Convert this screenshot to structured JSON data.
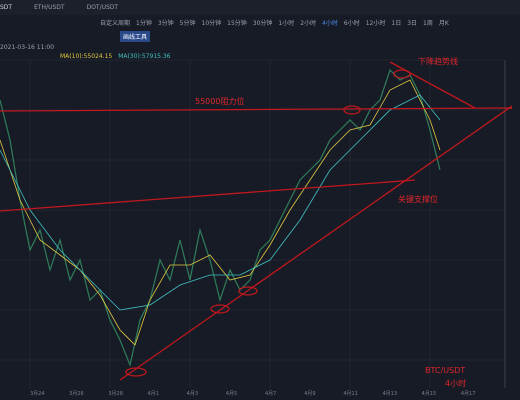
{
  "tabs": [
    "SDT",
    "ETH/USDT",
    "DOT/USDT"
  ],
  "periods": [
    "自定义周期",
    "1分钟",
    "3分钟",
    "5分钟",
    "10分钟",
    "15分钟",
    "30分钟",
    "1小时",
    "2小时",
    "4小时",
    "6小时",
    "12小时",
    "1日",
    "3日",
    "1周",
    "月K"
  ],
  "tools": {
    "draw": "画线工具"
  },
  "info": {
    "time": "2021-03-16 11:00",
    "ma10": "MA(10):55024.15",
    "ma30": "MA(30):57915.36"
  },
  "annotations": {
    "resistance": "55000阻力位",
    "downtrend": "下降趋势线",
    "support": "关键支撑位",
    "pair": "BTC/USDT",
    "interval": "4小时"
  },
  "time_axis": [
    "3月24",
    "3月26",
    "3月28",
    "4月1",
    "4月3",
    "4月5",
    "4月7",
    "4月9",
    "4月11",
    "4月13",
    "4月15",
    "4月17"
  ]
}
